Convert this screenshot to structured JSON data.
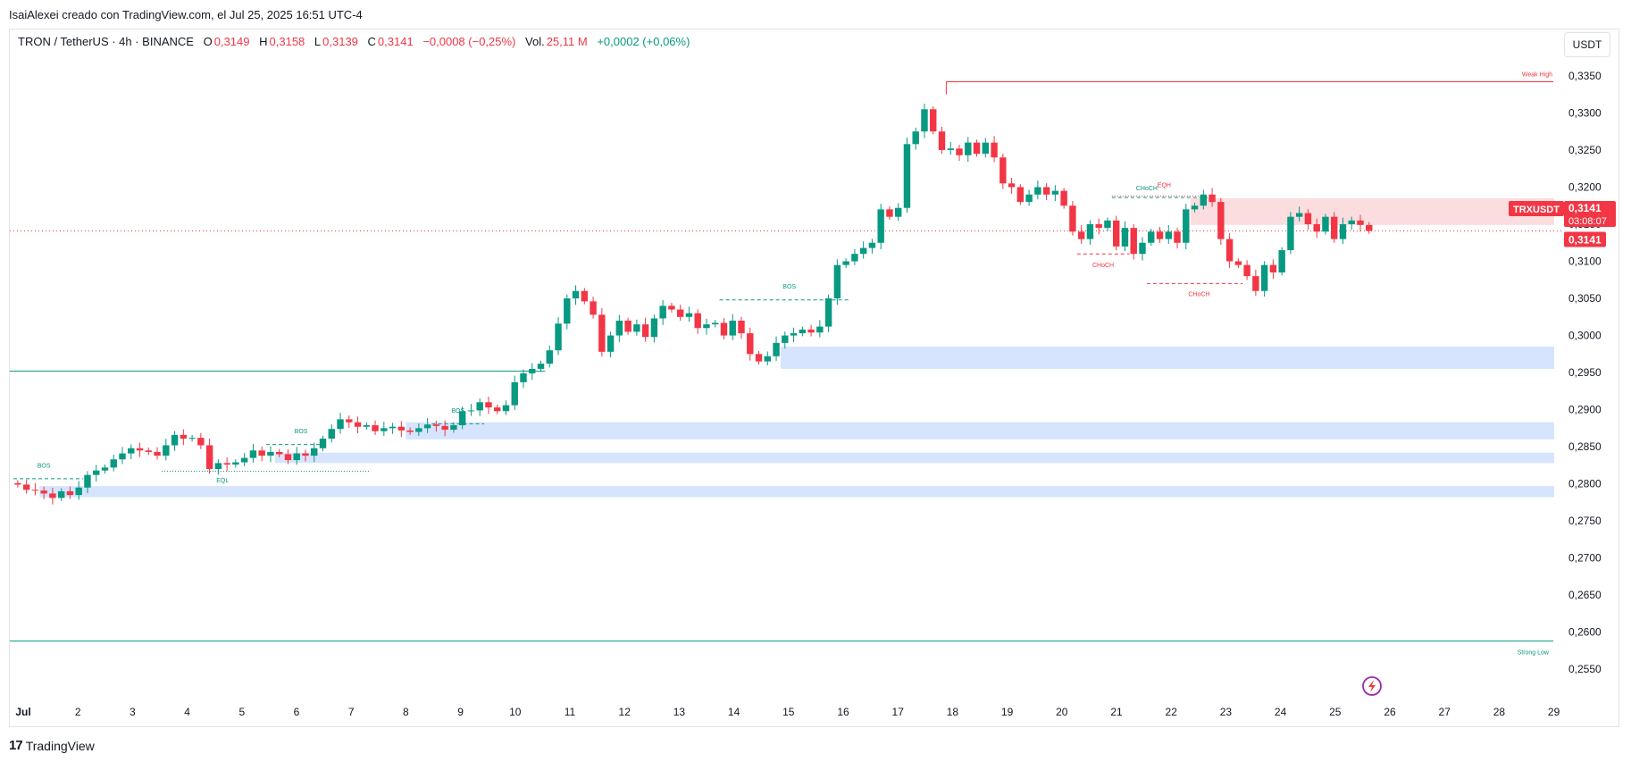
{
  "header": {
    "author_line": "IsaiAlexei creado con TradingView.com, el Jul 25, 2025 16:51 UTC-4"
  },
  "legend": {
    "symbol": "TRON / TetherUS · 4h · BINANCE",
    "open_label": "O",
    "open_value": "0,3149",
    "high_label": "H",
    "high_value": "0,3158",
    "low_label": "L",
    "low_value": "0,3139",
    "close_label": "C",
    "close_value": "0,3141",
    "change": "−0,0008 (−0,25%)",
    "vol_label": "Vol.",
    "vol_value": "25,11 M",
    "extra_change": "+0,0002 (+0,06%)"
  },
  "currency_button": "USDT",
  "footer": {
    "brand": "TradingView"
  },
  "colors": {
    "up": "#089981",
    "down": "#f23645",
    "zone_blue": "#d6e4fd",
    "zone_red": "#fbdde0"
  },
  "chart_data": {
    "type": "candlestick",
    "title": "TRON / TetherUS · 4h · BINANCE",
    "ylim": [
      0.2525,
      0.338
    ],
    "price_ticks": [
      "0,3350",
      "0,3300",
      "0,3250",
      "0,3200",
      "0,3150",
      "0,3100",
      "0,3050",
      "0,3000",
      "0,2950",
      "0,2900",
      "0,2850",
      "0,2800",
      "0,2750",
      "0,2700",
      "0,2650",
      "0,2600",
      "0,2550"
    ],
    "price_tick_values": [
      0.335,
      0.33,
      0.325,
      0.32,
      0.315,
      0.31,
      0.305,
      0.3,
      0.295,
      0.29,
      0.285,
      0.28,
      0.275,
      0.27,
      0.265,
      0.26,
      0.255
    ],
    "x_labels": [
      "Jul",
      "2",
      "3",
      "4",
      "5",
      "6",
      "7",
      "8",
      "9",
      "10",
      "11",
      "12",
      "13",
      "14",
      "15",
      "16",
      "17",
      "18",
      "19",
      "20",
      "21",
      "22",
      "23",
      "24",
      "25",
      "26",
      "27",
      "28",
      "29"
    ],
    "x_label_days": [
      1,
      2,
      3,
      4,
      5,
      6,
      7,
      8,
      9,
      10,
      11,
      12,
      13,
      14,
      15,
      16,
      17,
      18,
      19,
      20,
      21,
      22,
      23,
      24,
      25,
      26,
      27,
      28,
      29
    ],
    "current_price": {
      "symbol_label": "TRXUSDT",
      "value": "0,3141",
      "countdown": "03:08:07",
      "value_num": 0.3141
    },
    "closes": [
      0.2799,
      0.2792,
      0.2791,
      0.2787,
      0.2781,
      0.279,
      0.2785,
      0.2795,
      0.2812,
      0.2818,
      0.2822,
      0.2833,
      0.2841,
      0.2848,
      0.2845,
      0.2843,
      0.2838,
      0.2852,
      0.2866,
      0.2861,
      0.2862,
      0.2852,
      0.282,
      0.2828,
      0.2826,
      0.2829,
      0.2835,
      0.2845,
      0.2838,
      0.2843,
      0.284,
      0.2832,
      0.2841,
      0.2838,
      0.2848,
      0.2861,
      0.2874,
      0.2887,
      0.2883,
      0.2877,
      0.2879,
      0.2871,
      0.2875,
      0.2877,
      0.2872,
      0.287,
      0.2875,
      0.288,
      0.2878,
      0.2873,
      0.2879,
      0.2898,
      0.2899,
      0.291,
      0.2903,
      0.2898,
      0.2906,
      0.2937,
      0.2949,
      0.2955,
      0.2962,
      0.298,
      0.3016,
      0.305,
      0.306,
      0.3046,
      0.3028,
      0.2978,
      0.3,
      0.302,
      0.3005,
      0.3015,
      0.2998,
      0.3023,
      0.304,
      0.3035,
      0.3025,
      0.303,
      0.301,
      0.3015,
      0.3017,
      0.3,
      0.302,
      0.3003,
      0.2975,
      0.2965,
      0.2972,
      0.299,
      0.3,
      0.3003,
      0.3008,
      0.3004,
      0.3012,
      0.305,
      0.3095,
      0.31,
      0.311,
      0.3118,
      0.3125,
      0.317,
      0.316,
      0.3172,
      0.3258,
      0.3275,
      0.3305,
      0.3275,
      0.325,
      0.3252,
      0.3243,
      0.326,
      0.3245,
      0.326,
      0.324,
      0.3205,
      0.32,
      0.318,
      0.319,
      0.32,
      0.319,
      0.3195,
      0.3175,
      0.314,
      0.313,
      0.315,
      0.3145,
      0.3155,
      0.312,
      0.3145,
      0.311,
      0.3125,
      0.314,
      0.313,
      0.314,
      0.3125,
      0.317,
      0.3175,
      0.319,
      0.318,
      0.313,
      0.31,
      0.3095,
      0.308,
      0.306,
      0.3095,
      0.3085,
      0.3115,
      0.316,
      0.3165,
      0.315,
      0.314,
      0.316,
      0.313,
      0.315,
      0.3155,
      0.3149,
      0.3141
    ],
    "annotations": [
      "BOS",
      "EQL",
      "BOS",
      "BOS",
      "BOS",
      "CHoCH",
      "EQH",
      "CHoCH",
      "CHoCH",
      "Weak High",
      "Strong Low"
    ],
    "levels": {
      "weak_high": 0.3342,
      "strong_low": 0.2588,
      "support_line": 0.2952
    },
    "demand_zones": [
      [
        0.2955,
        0.2985
      ],
      [
        0.286,
        0.2883
      ],
      [
        0.2828,
        0.2842
      ],
      [
        0.2782,
        0.2797
      ]
    ],
    "supply_zone": [
      0.3149,
      0.3185
    ]
  }
}
